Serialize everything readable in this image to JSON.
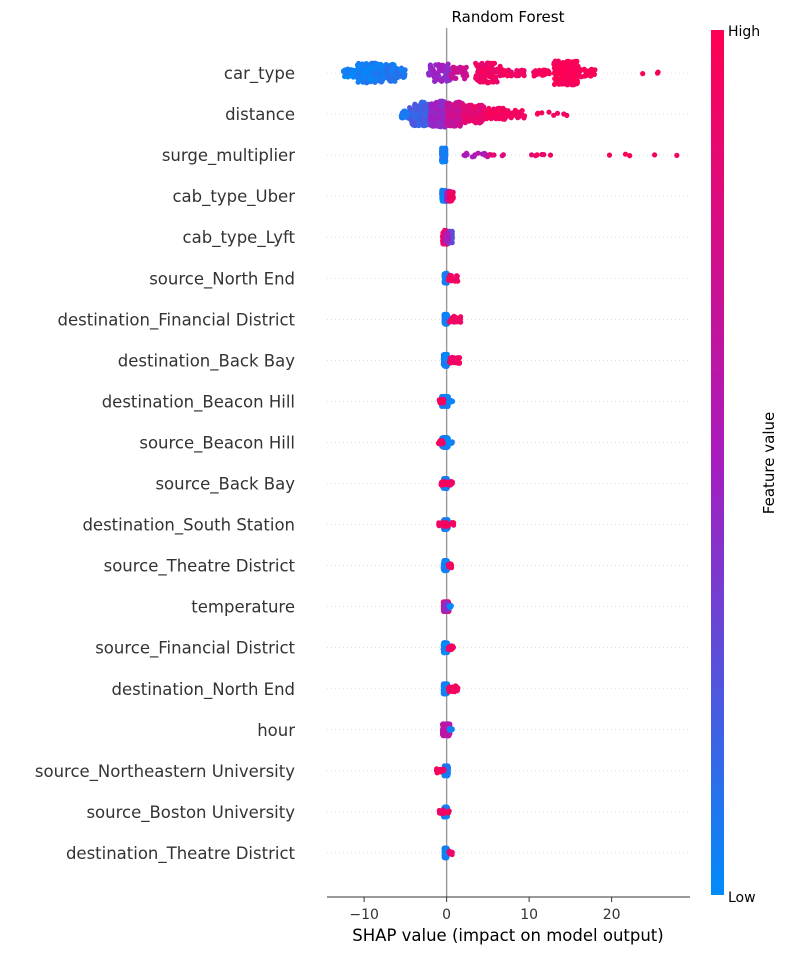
{
  "chart_data": {
    "type": "scatter",
    "title": "Random Forest",
    "xlabel": "SHAP value (impact on model output)",
    "xlim": [
      -14.5,
      29.5
    ],
    "xticks": [
      -10,
      0,
      10,
      20
    ],
    "zero_line": 0,
    "colors": {
      "low": "#008bfb",
      "mid": "#a71cbf",
      "high": "#ff0052",
      "axis_line": "#999999",
      "row_guide": "#cccccc"
    },
    "colorbar": {
      "title": "Feature value",
      "low_label": "Low",
      "high_label": "High"
    },
    "features": [
      {
        "name": "car_type",
        "clusters": [
          [
            -12.5,
            -11,
            60,
            0.02,
            4
          ],
          [
            -10.8,
            -8.5,
            140,
            0.05,
            10
          ],
          [
            -8.5,
            -6.2,
            110,
            0.08,
            9
          ],
          [
            -6.2,
            -5,
            30,
            0.1,
            5
          ],
          [
            -2.2,
            0.5,
            70,
            0.45,
            9
          ],
          [
            0.5,
            2.5,
            35,
            0.7,
            6
          ],
          [
            3.5,
            6.5,
            90,
            0.92,
            10
          ],
          [
            6.5,
            9.5,
            30,
            0.92,
            3
          ],
          [
            10.5,
            12.5,
            20,
            0.95,
            3
          ],
          [
            13,
            16,
            160,
            0.97,
            12
          ],
          [
            16,
            18,
            25,
            0.97,
            4
          ],
          [
            23.5,
            27,
            3,
            0.97,
            1
          ]
        ]
      },
      {
        "name": "distance",
        "clusters": [
          [
            -5.5,
            -4.5,
            30,
            0.06,
            4
          ],
          [
            -4.5,
            -2,
            140,
            0.2,
            12
          ],
          [
            -2,
            0,
            160,
            0.45,
            13
          ],
          [
            0,
            2,
            150,
            0.7,
            12
          ],
          [
            2,
            4.5,
            100,
            0.85,
            9
          ],
          [
            4.5,
            7,
            50,
            0.93,
            6
          ],
          [
            7,
            9.5,
            30,
            0.95,
            4
          ],
          [
            11,
            15.5,
            8,
            0.97,
            2
          ]
        ]
      },
      {
        "name": "surge_multiplier",
        "clusters": [
          [
            -0.6,
            -0.1,
            230,
            0.05,
            7
          ],
          [
            2,
            5,
            14,
            0.55,
            2
          ],
          [
            5,
            7.5,
            6,
            0.8,
            1
          ],
          [
            10,
            13,
            6,
            0.9,
            1
          ],
          [
            19.5,
            28,
            5,
            0.97,
            1
          ]
        ]
      },
      {
        "name": "cab_type_Uber",
        "clusters": [
          [
            -0.6,
            0,
            80,
            0.05,
            6
          ],
          [
            0,
            0.5,
            60,
            0.5,
            5
          ],
          [
            0.3,
            0.8,
            40,
            0.93,
            5
          ]
        ]
      },
      {
        "name": "cab_type_Lyft",
        "clusters": [
          [
            -0.5,
            0.2,
            90,
            0.92,
            7
          ],
          [
            0.2,
            0.7,
            60,
            0.3,
            6
          ],
          [
            -0.2,
            0.2,
            30,
            0.5,
            4
          ]
        ]
      },
      {
        "name": "source_North End",
        "clusters": [
          [
            -0.3,
            0.1,
            170,
            0.05,
            5
          ],
          [
            0.2,
            1.4,
            25,
            0.93,
            3
          ]
        ]
      },
      {
        "name": "destination_Financial District",
        "clusters": [
          [
            -0.3,
            0.1,
            170,
            0.05,
            5
          ],
          [
            0.3,
            2,
            25,
            0.93,
            3
          ]
        ]
      },
      {
        "name": "destination_Back Bay",
        "clusters": [
          [
            -0.4,
            0.1,
            160,
            0.05,
            6
          ],
          [
            0.3,
            1.7,
            25,
            0.93,
            3
          ]
        ]
      },
      {
        "name": "destination_Beacon Hill",
        "clusters": [
          [
            -0.6,
            0.2,
            170,
            0.05,
            5
          ],
          [
            -0.9,
            -0.3,
            20,
            0.93,
            2
          ],
          [
            0.3,
            0.8,
            8,
            0.05,
            1
          ]
        ]
      },
      {
        "name": "source_Beacon Hill",
        "clusters": [
          [
            -0.6,
            0.2,
            170,
            0.05,
            5
          ],
          [
            -1,
            -0.4,
            20,
            0.93,
            2
          ],
          [
            0.3,
            0.7,
            8,
            0.05,
            1
          ]
        ]
      },
      {
        "name": "source_Back Bay",
        "clusters": [
          [
            -0.4,
            0.1,
            170,
            0.05,
            5
          ],
          [
            -0.8,
            0.8,
            25,
            0.93,
            2
          ]
        ]
      },
      {
        "name": "destination_South Station",
        "clusters": [
          [
            -0.4,
            0.2,
            160,
            0.05,
            5
          ],
          [
            -1,
            1,
            30,
            0.93,
            2
          ]
        ]
      },
      {
        "name": "source_Theatre District",
        "clusters": [
          [
            -0.4,
            0.1,
            170,
            0.05,
            5
          ],
          [
            0.2,
            0.6,
            15,
            0.93,
            2
          ]
        ]
      },
      {
        "name": "temperature",
        "clusters": [
          [
            -0.4,
            0.3,
            150,
            0.8,
            5
          ],
          [
            -0.3,
            0.2,
            40,
            0.4,
            4
          ],
          [
            0.3,
            0.6,
            8,
            0.05,
            1
          ]
        ]
      },
      {
        "name": "source_Financial District",
        "clusters": [
          [
            -0.4,
            0.1,
            170,
            0.05,
            5
          ],
          [
            0.2,
            0.9,
            20,
            0.93,
            2
          ]
        ]
      },
      {
        "name": "destination_North End",
        "clusters": [
          [
            -0.4,
            0.1,
            170,
            0.05,
            5
          ],
          [
            0.2,
            1.4,
            20,
            0.93,
            3
          ]
        ]
      },
      {
        "name": "hour",
        "clusters": [
          [
            -0.5,
            0.4,
            160,
            0.6,
            6
          ],
          [
            0.3,
            0.7,
            8,
            0.05,
            1
          ]
        ]
      },
      {
        "name": "source_Northeastern University",
        "clusters": [
          [
            -0.3,
            0.2,
            170,
            0.05,
            5
          ],
          [
            -1.3,
            -0.3,
            20,
            0.93,
            2
          ]
        ]
      },
      {
        "name": "source_Boston University",
        "clusters": [
          [
            -0.4,
            0.1,
            170,
            0.05,
            5
          ],
          [
            -0.9,
            -0.3,
            15,
            0.93,
            2
          ],
          [
            0.1,
            0.4,
            8,
            0.93,
            1
          ]
        ]
      },
      {
        "name": "destination_Theatre District",
        "clusters": [
          [
            -0.3,
            0.1,
            170,
            0.05,
            5
          ],
          [
            0.2,
            0.7,
            12,
            0.93,
            2
          ]
        ]
      }
    ]
  }
}
